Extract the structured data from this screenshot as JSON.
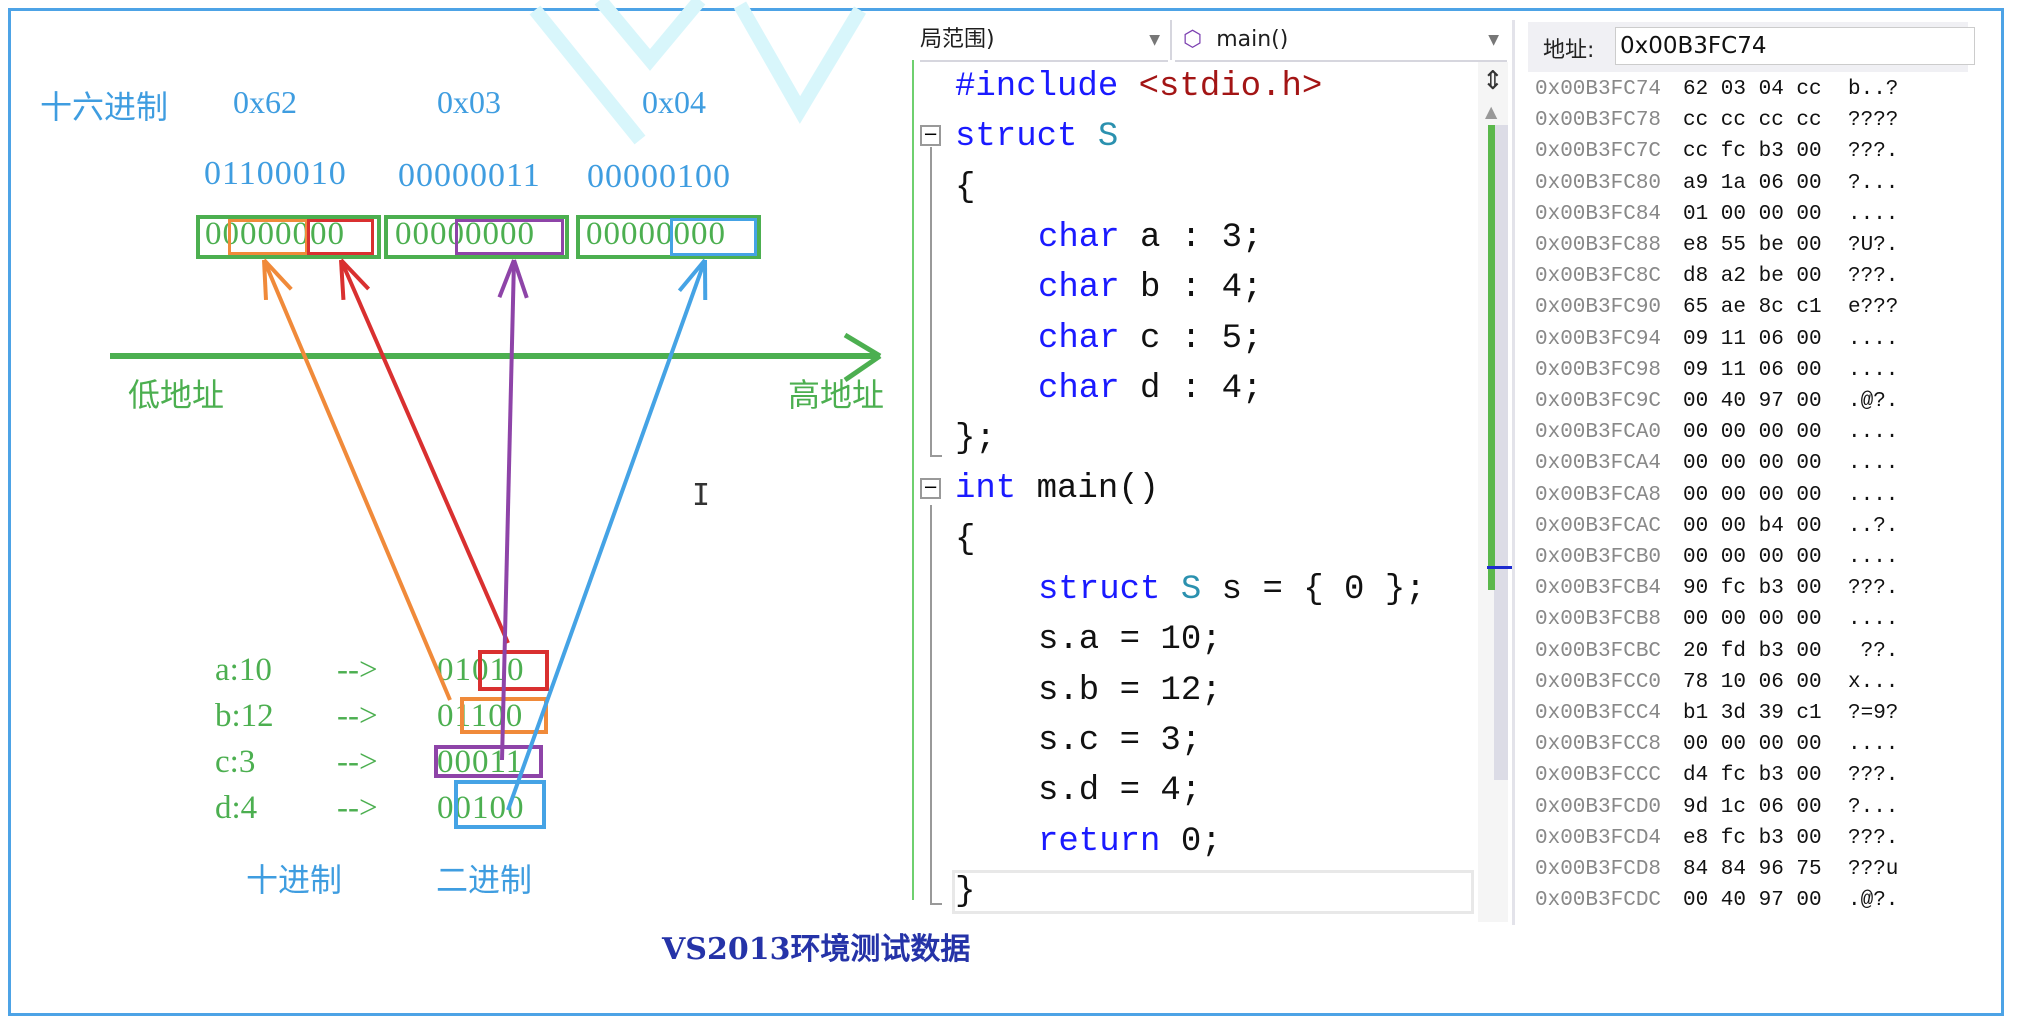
{
  "diagram": {
    "hex_label": "十六进制",
    "hex_values": [
      "0x62",
      "0x03",
      "0x04"
    ],
    "binary_values": [
      "01100010",
      "00000011",
      "00000100"
    ],
    "memory_bytes": [
      "00000000",
      "00000000",
      "00000000"
    ],
    "low_address": "低地址",
    "high_address": "高地址",
    "members": [
      {
        "label": "a:10",
        "arrow": "-->",
        "bits": "01010"
      },
      {
        "label": "b:12",
        "arrow": "-->",
        "bits": "01100"
      },
      {
        "label": "c:3",
        "arrow": "-->",
        "bits": "00011"
      },
      {
        "label": "d:4",
        "arrow": "-->",
        "bits": "00100"
      }
    ],
    "decimal_label": "十进制",
    "binary_label": "二进制",
    "colors": {
      "a": "#d93030",
      "b": "#f08a3a",
      "c": "#8e44a8",
      "d": "#45a3e5",
      "byte_box": "#4caf50",
      "axis": "#4caf50"
    }
  },
  "caption": "VS2013环境测试数据",
  "editor": {
    "scope_dropdown": "局范围)",
    "function_dropdown": "main()",
    "lines": [
      {
        "indent": 0,
        "tokens": [
          {
            "t": "#include ",
            "c": "kw"
          },
          {
            "t": "<stdio.h>",
            "c": "str"
          }
        ]
      },
      {
        "indent": 0,
        "tokens": [
          {
            "t": "struct ",
            "c": "kw"
          },
          {
            "t": "S",
            "c": "ty"
          }
        ]
      },
      {
        "indent": 0,
        "tokens": [
          {
            "t": "{",
            "c": "pl"
          }
        ]
      },
      {
        "indent": 1,
        "tokens": [
          {
            "t": "char ",
            "c": "kw"
          },
          {
            "t": "a : 3;",
            "c": "pl"
          }
        ]
      },
      {
        "indent": 1,
        "tokens": [
          {
            "t": "char ",
            "c": "kw"
          },
          {
            "t": "b : 4;",
            "c": "pl"
          }
        ]
      },
      {
        "indent": 1,
        "tokens": [
          {
            "t": "char ",
            "c": "kw"
          },
          {
            "t": "c : 5;",
            "c": "pl"
          }
        ]
      },
      {
        "indent": 1,
        "tokens": [
          {
            "t": "char ",
            "c": "kw"
          },
          {
            "t": "d : 4;",
            "c": "pl"
          }
        ]
      },
      {
        "indent": 0,
        "tokens": [
          {
            "t": "};",
            "c": "pl"
          }
        ]
      },
      {
        "indent": 0,
        "tokens": [
          {
            "t": "int ",
            "c": "kw"
          },
          {
            "t": "main()",
            "c": "pl"
          }
        ]
      },
      {
        "indent": 0,
        "tokens": [
          {
            "t": "{",
            "c": "pl"
          }
        ]
      },
      {
        "indent": 1,
        "tokens": [
          {
            "t": "struct ",
            "c": "kw"
          },
          {
            "t": "S",
            "c": "ty"
          },
          {
            "t": " s = { 0 };",
            "c": "pl"
          }
        ]
      },
      {
        "indent": 1,
        "tokens": [
          {
            "t": "s.a = 10;",
            "c": "pl"
          }
        ]
      },
      {
        "indent": 1,
        "tokens": [
          {
            "t": "s.b = 12;",
            "c": "pl"
          }
        ]
      },
      {
        "indent": 1,
        "tokens": [
          {
            "t": "s.c = 3;",
            "c": "pl"
          }
        ]
      },
      {
        "indent": 1,
        "tokens": [
          {
            "t": "s.d = 4;",
            "c": "pl"
          }
        ]
      },
      {
        "indent": 1,
        "tokens": [
          {
            "t": "return ",
            "c": "kw"
          },
          {
            "t": "0;",
            "c": "pl"
          }
        ]
      },
      {
        "indent": 0,
        "tokens": [
          {
            "t": "}",
            "c": "pl"
          }
        ]
      }
    ]
  },
  "memory": {
    "address_label": "地址:",
    "address_value": "0x00B3FC74",
    "rows": [
      [
        "0x00B3FC74",
        "62 03 04 cc",
        "b..?"
      ],
      [
        "0x00B3FC78",
        "cc cc cc cc",
        "????"
      ],
      [
        "0x00B3FC7C",
        "cc fc b3 00",
        "???."
      ],
      [
        "0x00B3FC80",
        "a9 1a 06 00",
        "?..."
      ],
      [
        "0x00B3FC84",
        "01 00 00 00",
        "...."
      ],
      [
        "0x00B3FC88",
        "e8 55 be 00",
        "?U?."
      ],
      [
        "0x00B3FC8C",
        "d8 a2 be 00",
        "???."
      ],
      [
        "0x00B3FC90",
        "65 ae 8c c1",
        "e???"
      ],
      [
        "0x00B3FC94",
        "09 11 06 00",
        "...."
      ],
      [
        "0x00B3FC98",
        "09 11 06 00",
        "...."
      ],
      [
        "0x00B3FC9C",
        "00 40 97 00",
        ".@?."
      ],
      [
        "0x00B3FCA0",
        "00 00 00 00",
        "...."
      ],
      [
        "0x00B3FCA4",
        "00 00 00 00",
        "...."
      ],
      [
        "0x00B3FCA8",
        "00 00 00 00",
        "...."
      ],
      [
        "0x00B3FCAC",
        "00 00 b4 00",
        "..?."
      ],
      [
        "0x00B3FCB0",
        "00 00 00 00",
        "...."
      ],
      [
        "0x00B3FCB4",
        "90 fc b3 00",
        "???."
      ],
      [
        "0x00B3FCB8",
        "00 00 00 00",
        "...."
      ],
      [
        "0x00B3FCBC",
        "20 fd b3 00",
        " ??."
      ],
      [
        "0x00B3FCC0",
        "78 10 06 00",
        "x..."
      ],
      [
        "0x00B3FCC4",
        "b1 3d 39 c1",
        "?=9?"
      ],
      [
        "0x00B3FCC8",
        "00 00 00 00",
        "...."
      ],
      [
        "0x00B3FCCC",
        "d4 fc b3 00",
        "???."
      ],
      [
        "0x00B3FCD0",
        "9d 1c 06 00",
        "?..."
      ],
      [
        "0x00B3FCD4",
        "e8 fc b3 00",
        "???."
      ],
      [
        "0x00B3FCD8",
        "84 84 96 75",
        "???u"
      ],
      [
        "0x00B3FCDC",
        "00 40 97 00",
        ".@?."
      ]
    ]
  }
}
